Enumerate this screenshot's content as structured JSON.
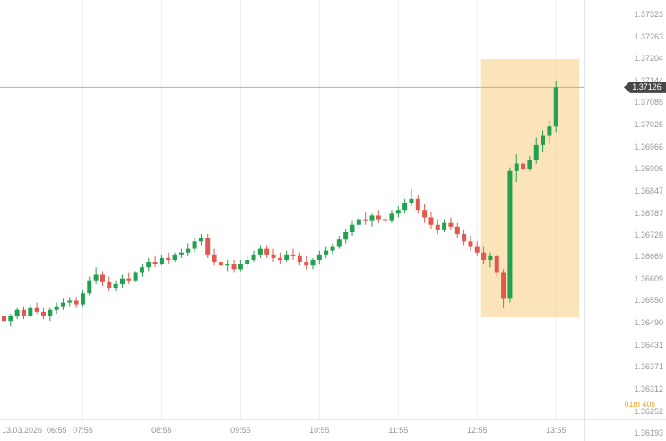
{
  "chart_data": {
    "type": "candlestick",
    "date": "13.03.2026",
    "timeframe_minutes": 5,
    "current_price": "1.37126",
    "countdown": "01m 40s",
    "colors": {
      "up": "#23a050",
      "down": "#e4574e",
      "highlight_fill": "rgba(245,190,90,0.42)",
      "price_line": "#b0b0b0",
      "price_tag_bg": "#474747",
      "countdown": "#ef9d20",
      "axis_text": "#949494",
      "grid": "#eeeeee"
    },
    "y_axis": {
      "max": 1.37323,
      "min": 1.36193,
      "ticks": [
        "1.37323",
        "1.37263",
        "1.37204",
        "1.37144",
        "1.37085",
        "1.37025",
        "1.36966",
        "1.36906",
        "1.36847",
        "1.36787",
        "1.36728",
        "1.36669",
        "1.36609",
        "1.36550",
        "1.36490",
        "1.36431",
        "1.36371",
        "1.36312",
        "1.36252",
        "1.36193"
      ]
    },
    "x_axis": {
      "start_time": "06:55",
      "labels": [
        {
          "time": "06:55",
          "text": "13.03.2026  06:55",
          "align": "left"
        },
        {
          "time": "07:55",
          "text": "07:55"
        },
        {
          "time": "08:55",
          "text": "08:55"
        },
        {
          "time": "09:55",
          "text": "09:55"
        },
        {
          "time": "10:55",
          "text": "10:55"
        },
        {
          "time": "11:55",
          "text": "11:55"
        },
        {
          "time": "12:55",
          "text": "12:55"
        },
        {
          "time": "13:55",
          "text": "13:55"
        }
      ]
    },
    "highlight_region": {
      "from_time": "12:58",
      "to_time": "14:10",
      "price_top": 1.37202,
      "price_bottom": 1.36505
    },
    "candles": [
      {
        "t": "06:55",
        "o": 1.3651,
        "h": 1.3652,
        "l": 1.36485,
        "c": 1.36495
      },
      {
        "t": "07:00",
        "o": 1.36495,
        "h": 1.36515,
        "l": 1.3648,
        "c": 1.3651
      },
      {
        "t": "07:05",
        "o": 1.3651,
        "h": 1.3653,
        "l": 1.365,
        "c": 1.36525
      },
      {
        "t": "07:10",
        "o": 1.36525,
        "h": 1.36535,
        "l": 1.365,
        "c": 1.3651
      },
      {
        "t": "07:15",
        "o": 1.3651,
        "h": 1.3654,
        "l": 1.36505,
        "c": 1.3653
      },
      {
        "t": "07:20",
        "o": 1.3653,
        "h": 1.36545,
        "l": 1.36515,
        "c": 1.3652
      },
      {
        "t": "07:25",
        "o": 1.3652,
        "h": 1.3653,
        "l": 1.365,
        "c": 1.3651
      },
      {
        "t": "07:30",
        "o": 1.3651,
        "h": 1.3653,
        "l": 1.36495,
        "c": 1.36525
      },
      {
        "t": "07:35",
        "o": 1.36525,
        "h": 1.36545,
        "l": 1.36515,
        "c": 1.36535
      },
      {
        "t": "07:40",
        "o": 1.36535,
        "h": 1.36555,
        "l": 1.36525,
        "c": 1.36545
      },
      {
        "t": "07:45",
        "o": 1.36545,
        "h": 1.3656,
        "l": 1.36535,
        "c": 1.3655
      },
      {
        "t": "07:50",
        "o": 1.3655,
        "h": 1.3656,
        "l": 1.3653,
        "c": 1.3654
      },
      {
        "t": "07:55",
        "o": 1.3654,
        "h": 1.3658,
        "l": 1.36535,
        "c": 1.3657
      },
      {
        "t": "08:00",
        "o": 1.3657,
        "h": 1.36615,
        "l": 1.36565,
        "c": 1.36605
      },
      {
        "t": "08:05",
        "o": 1.36605,
        "h": 1.3664,
        "l": 1.36595,
        "c": 1.3662
      },
      {
        "t": "08:10",
        "o": 1.3662,
        "h": 1.3663,
        "l": 1.3659,
        "c": 1.366
      },
      {
        "t": "08:15",
        "o": 1.366,
        "h": 1.36615,
        "l": 1.36575,
        "c": 1.36585
      },
      {
        "t": "08:20",
        "o": 1.36585,
        "h": 1.36605,
        "l": 1.36575,
        "c": 1.36595
      },
      {
        "t": "08:25",
        "o": 1.36595,
        "h": 1.3662,
        "l": 1.36585,
        "c": 1.3661
      },
      {
        "t": "08:30",
        "o": 1.3661,
        "h": 1.36625,
        "l": 1.36595,
        "c": 1.36605
      },
      {
        "t": "08:35",
        "o": 1.36605,
        "h": 1.3663,
        "l": 1.366,
        "c": 1.36625
      },
      {
        "t": "08:40",
        "o": 1.36625,
        "h": 1.3665,
        "l": 1.36615,
        "c": 1.3664
      },
      {
        "t": "08:45",
        "o": 1.3664,
        "h": 1.36665,
        "l": 1.3663,
        "c": 1.36655
      },
      {
        "t": "08:50",
        "o": 1.36655,
        "h": 1.3667,
        "l": 1.3664,
        "c": 1.3665
      },
      {
        "t": "08:55",
        "o": 1.3665,
        "h": 1.36675,
        "l": 1.36645,
        "c": 1.36665
      },
      {
        "t": "09:00",
        "o": 1.36665,
        "h": 1.3668,
        "l": 1.3665,
        "c": 1.3666
      },
      {
        "t": "09:05",
        "o": 1.3666,
        "h": 1.3668,
        "l": 1.36655,
        "c": 1.36675
      },
      {
        "t": "09:10",
        "o": 1.36675,
        "h": 1.3669,
        "l": 1.36665,
        "c": 1.3668
      },
      {
        "t": "09:15",
        "o": 1.3668,
        "h": 1.36705,
        "l": 1.3667,
        "c": 1.3669
      },
      {
        "t": "09:20",
        "o": 1.3669,
        "h": 1.3672,
        "l": 1.3668,
        "c": 1.3671
      },
      {
        "t": "09:25",
        "o": 1.3671,
        "h": 1.3673,
        "l": 1.367,
        "c": 1.3672
      },
      {
        "t": "09:30",
        "o": 1.3672,
        "h": 1.3673,
        "l": 1.36665,
        "c": 1.36675
      },
      {
        "t": "09:35",
        "o": 1.36675,
        "h": 1.3669,
        "l": 1.36645,
        "c": 1.36655
      },
      {
        "t": "09:40",
        "o": 1.36655,
        "h": 1.3667,
        "l": 1.36635,
        "c": 1.36645
      },
      {
        "t": "09:45",
        "o": 1.36645,
        "h": 1.3666,
        "l": 1.3663,
        "c": 1.3665
      },
      {
        "t": "09:50",
        "o": 1.3665,
        "h": 1.3666,
        "l": 1.36625,
        "c": 1.36635
      },
      {
        "t": "09:55",
        "o": 1.36635,
        "h": 1.3666,
        "l": 1.3663,
        "c": 1.3665
      },
      {
        "t": "10:00",
        "o": 1.3665,
        "h": 1.3667,
        "l": 1.3664,
        "c": 1.3666
      },
      {
        "t": "10:05",
        "o": 1.3666,
        "h": 1.36685,
        "l": 1.36655,
        "c": 1.36675
      },
      {
        "t": "10:10",
        "o": 1.36675,
        "h": 1.367,
        "l": 1.36665,
        "c": 1.3669
      },
      {
        "t": "10:15",
        "o": 1.3669,
        "h": 1.367,
        "l": 1.36665,
        "c": 1.36675
      },
      {
        "t": "10:20",
        "o": 1.36675,
        "h": 1.3669,
        "l": 1.36655,
        "c": 1.36665
      },
      {
        "t": "10:25",
        "o": 1.36665,
        "h": 1.3668,
        "l": 1.3665,
        "c": 1.3666
      },
      {
        "t": "10:30",
        "o": 1.3666,
        "h": 1.36685,
        "l": 1.36655,
        "c": 1.36675
      },
      {
        "t": "10:35",
        "o": 1.36675,
        "h": 1.3669,
        "l": 1.3666,
        "c": 1.3667
      },
      {
        "t": "10:40",
        "o": 1.3667,
        "h": 1.3668,
        "l": 1.36645,
        "c": 1.36655
      },
      {
        "t": "10:45",
        "o": 1.36655,
        "h": 1.3667,
        "l": 1.36635,
        "c": 1.36645
      },
      {
        "t": "10:50",
        "o": 1.36645,
        "h": 1.36665,
        "l": 1.36635,
        "c": 1.3666
      },
      {
        "t": "10:55",
        "o": 1.3666,
        "h": 1.36685,
        "l": 1.3665,
        "c": 1.36675
      },
      {
        "t": "11:00",
        "o": 1.36675,
        "h": 1.36695,
        "l": 1.36665,
        "c": 1.36685
      },
      {
        "t": "11:05",
        "o": 1.36685,
        "h": 1.36705,
        "l": 1.36675,
        "c": 1.36695
      },
      {
        "t": "11:10",
        "o": 1.36695,
        "h": 1.36725,
        "l": 1.3669,
        "c": 1.36715
      },
      {
        "t": "11:15",
        "o": 1.36715,
        "h": 1.36745,
        "l": 1.36705,
        "c": 1.36735
      },
      {
        "t": "11:20",
        "o": 1.36735,
        "h": 1.36765,
        "l": 1.36725,
        "c": 1.36755
      },
      {
        "t": "11:25",
        "o": 1.36755,
        "h": 1.3678,
        "l": 1.36745,
        "c": 1.3677
      },
      {
        "t": "11:30",
        "o": 1.3677,
        "h": 1.3679,
        "l": 1.36755,
        "c": 1.36765
      },
      {
        "t": "11:35",
        "o": 1.36765,
        "h": 1.36785,
        "l": 1.3675,
        "c": 1.3678
      },
      {
        "t": "11:40",
        "o": 1.3678,
        "h": 1.36795,
        "l": 1.3676,
        "c": 1.3677
      },
      {
        "t": "11:45",
        "o": 1.3677,
        "h": 1.3679,
        "l": 1.36755,
        "c": 1.36765
      },
      {
        "t": "11:50",
        "o": 1.36765,
        "h": 1.36795,
        "l": 1.3676,
        "c": 1.36785
      },
      {
        "t": "11:55",
        "o": 1.36785,
        "h": 1.36805,
        "l": 1.36775,
        "c": 1.36795
      },
      {
        "t": "12:00",
        "o": 1.36795,
        "h": 1.36825,
        "l": 1.36785,
        "c": 1.36815
      },
      {
        "t": "12:05",
        "o": 1.36815,
        "h": 1.36852,
        "l": 1.36805,
        "c": 1.36825
      },
      {
        "t": "12:10",
        "o": 1.36825,
        "h": 1.36835,
        "l": 1.36785,
        "c": 1.36795
      },
      {
        "t": "12:15",
        "o": 1.36795,
        "h": 1.3681,
        "l": 1.3676,
        "c": 1.36775
      },
      {
        "t": "12:20",
        "o": 1.36775,
        "h": 1.3679,
        "l": 1.36745,
        "c": 1.36755
      },
      {
        "t": "12:25",
        "o": 1.36755,
        "h": 1.3677,
        "l": 1.3673,
        "c": 1.3674
      },
      {
        "t": "12:30",
        "o": 1.3674,
        "h": 1.3677,
        "l": 1.36735,
        "c": 1.3676
      },
      {
        "t": "12:35",
        "o": 1.3676,
        "h": 1.36775,
        "l": 1.3674,
        "c": 1.3675
      },
      {
        "t": "12:40",
        "o": 1.3675,
        "h": 1.3676,
        "l": 1.3672,
        "c": 1.3673
      },
      {
        "t": "12:45",
        "o": 1.3673,
        "h": 1.3674,
        "l": 1.367,
        "c": 1.3671
      },
      {
        "t": "12:50",
        "o": 1.3671,
        "h": 1.36725,
        "l": 1.36685,
        "c": 1.36695
      },
      {
        "t": "12:55",
        "o": 1.36695,
        "h": 1.3671,
        "l": 1.3667,
        "c": 1.3668
      },
      {
        "t": "13:00",
        "o": 1.3668,
        "h": 1.36695,
        "l": 1.3665,
        "c": 1.3666
      },
      {
        "t": "13:05",
        "o": 1.3666,
        "h": 1.3668,
        "l": 1.3664,
        "c": 1.3667
      },
      {
        "t": "13:10",
        "o": 1.3667,
        "h": 1.36675,
        "l": 1.36615,
        "c": 1.36625
      },
      {
        "t": "13:15",
        "o": 1.36625,
        "h": 1.36635,
        "l": 1.3653,
        "c": 1.36555
      },
      {
        "t": "13:20",
        "o": 1.36555,
        "h": 1.3691,
        "l": 1.36545,
        "c": 1.369
      },
      {
        "t": "13:25",
        "o": 1.369,
        "h": 1.36945,
        "l": 1.3687,
        "c": 1.3692
      },
      {
        "t": "13:30",
        "o": 1.3692,
        "h": 1.36935,
        "l": 1.36895,
        "c": 1.36905
      },
      {
        "t": "13:35",
        "o": 1.36905,
        "h": 1.3694,
        "l": 1.369,
        "c": 1.3693
      },
      {
        "t": "13:40",
        "o": 1.3693,
        "h": 1.3699,
        "l": 1.3692,
        "c": 1.3697
      },
      {
        "t": "13:45",
        "o": 1.3697,
        "h": 1.3701,
        "l": 1.3695,
        "c": 1.36995
      },
      {
        "t": "13:50",
        "o": 1.36995,
        "h": 1.37035,
        "l": 1.36975,
        "c": 1.3702
      },
      {
        "t": "13:55",
        "o": 1.3702,
        "h": 1.37144,
        "l": 1.37005,
        "c": 1.37126
      }
    ]
  }
}
